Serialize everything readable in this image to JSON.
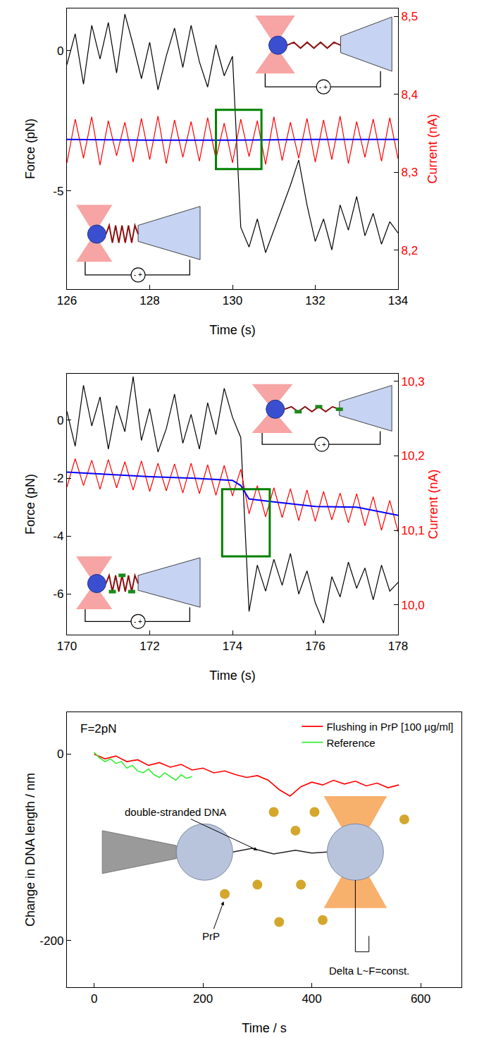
{
  "chart_data": [
    {
      "type": "line",
      "xlabel": "Time (s)",
      "ylabel": "Force (pN)",
      "y2label": "Current (nA)",
      "grid": false,
      "xlim": [
        126,
        134
      ],
      "xticks": [
        126,
        128,
        130,
        132,
        134
      ],
      "ylim": [
        -8.5,
        1.5
      ],
      "yticks": [
        -5,
        0
      ],
      "y2lim": [
        8.15,
        8.51
      ],
      "y2ticks": [
        {
          "value": 8.2,
          "label": "8,2"
        },
        {
          "value": 8.3,
          "label": "8,3"
        },
        {
          "value": 8.4,
          "label": "8,4"
        },
        {
          "value": 8.5,
          "label": "8,5"
        }
      ],
      "series": [
        {
          "color": "#000000",
          "x": [
            126,
            126.2,
            126.4,
            126.6,
            126.8,
            127,
            127.2,
            127.4,
            127.6,
            127.8,
            128,
            128.2,
            128.4,
            128.6,
            128.8,
            129,
            129.2,
            129.4,
            129.6,
            129.8,
            130,
            130.2,
            130.4,
            130.6,
            130.8,
            131,
            131.2,
            131.4,
            131.6,
            131.8,
            132,
            132.2,
            132.4,
            132.6,
            132.8,
            133,
            133.2,
            133.4,
            133.6,
            133.8,
            134
          ],
          "values": [
            -0.5,
            0.6,
            -1.2,
            0.9,
            -0.3,
            1.0,
            -0.8,
            1.3,
            0.2,
            -1.0,
            0.3,
            -1.4,
            -0.2,
            0.8,
            -0.6,
            0.9,
            -0.4,
            -1.3,
            0.2,
            -0.9,
            -0.2,
            -6.3,
            -7.0,
            -6.0,
            -7.2,
            -6.4,
            -5.6,
            -4.8,
            -3.9,
            -5.5,
            -6.8,
            -6.0,
            -7.1,
            -5.5,
            -6.4,
            -5.2,
            -6.6,
            -5.8,
            -6.9,
            -6.1,
            -6.5
          ]
        },
        {
          "color": "#ff0000",
          "axis": "y2",
          "x": [
            126,
            126.2,
            126.4,
            126.6,
            126.8,
            127,
            127.2,
            127.4,
            127.6,
            127.8,
            128,
            128.2,
            128.4,
            128.6,
            128.8,
            129,
            129.2,
            129.4,
            129.6,
            129.8,
            130,
            130.2,
            130.4,
            130.6,
            130.8,
            131,
            131.2,
            131.4,
            131.6,
            131.8,
            132,
            132.2,
            132.4,
            132.6,
            132.8,
            133,
            133.2,
            133.4,
            133.6,
            133.8,
            134
          ],
          "values": [
            8.312,
            8.368,
            8.318,
            8.371,
            8.309,
            8.366,
            8.321,
            8.364,
            8.313,
            8.369,
            8.316,
            8.372,
            8.311,
            8.367,
            8.319,
            8.365,
            8.314,
            8.37,
            8.317,
            8.363,
            8.312,
            8.368,
            8.32,
            8.366,
            8.31,
            8.371,
            8.315,
            8.364,
            8.318,
            8.369,
            8.313,
            8.367,
            8.316,
            8.372,
            8.311,
            8.365,
            8.319,
            8.368,
            8.314,
            8.37,
            8.317
          ]
        },
        {
          "color": "#0000ff",
          "axis": "y2",
          "x": [
            126,
            128,
            130,
            132,
            134
          ],
          "values": [
            8.342,
            8.341,
            8.341,
            8.342,
            8.342
          ]
        }
      ],
      "highlight": {
        "x": [
          129.6,
          130.7
        ],
        "y": [
          8.304,
          8.38
        ],
        "axis": "y2",
        "color": "#008000"
      },
      "inset_label": "- +"
    },
    {
      "type": "line",
      "xlabel": "Time (s)",
      "ylabel": "Force (pN)",
      "y2label": "Current (nA)",
      "grid": false,
      "xlim": [
        170,
        178
      ],
      "xticks": [
        170,
        172,
        174,
        176,
        178
      ],
      "ylim": [
        -7.4,
        1.6
      ],
      "yticks": [
        -6,
        -4,
        -2,
        0
      ],
      "y2lim": [
        9.96,
        10.31
      ],
      "y2ticks": [
        {
          "value": 10.0,
          "label": "10,0"
        },
        {
          "value": 10.1,
          "label": "10,1"
        },
        {
          "value": 10.2,
          "label": "10,2"
        },
        {
          "value": 10.3,
          "label": "10,3"
        }
      ],
      "series": [
        {
          "color": "#000000",
          "x": [
            170,
            170.2,
            170.4,
            170.6,
            170.8,
            171,
            171.2,
            171.4,
            171.6,
            171.8,
            172,
            172.2,
            172.4,
            172.6,
            172.8,
            173,
            173.2,
            173.4,
            173.6,
            173.8,
            174,
            174.2,
            174.4,
            174.6,
            174.8,
            175,
            175.2,
            175.4,
            175.6,
            175.8,
            176,
            176.2,
            176.4,
            176.6,
            176.8,
            177,
            177.2,
            177.4,
            177.6,
            177.8,
            178
          ],
          "values": [
            0.3,
            -0.9,
            1.2,
            -0.2,
            0.8,
            -1.0,
            0.5,
            -0.4,
            1.5,
            -0.7,
            0.4,
            -1.1,
            -0.3,
            0.9,
            -0.8,
            0.2,
            -1.0,
            0.6,
            -0.5,
            1.1,
            0.1,
            -0.6,
            -6.6,
            -5.0,
            -5.9,
            -4.8,
            -5.7,
            -4.6,
            -6.0,
            -5.2,
            -6.3,
            -7.0,
            -5.4,
            -6.1,
            -4.9,
            -5.8,
            -5.1,
            -6.2,
            -5.0,
            -5.9,
            -5.6
          ]
        },
        {
          "color": "#ff0000",
          "axis": "y2",
          "x": [
            170,
            170.2,
            170.4,
            170.6,
            170.8,
            171,
            171.2,
            171.4,
            171.6,
            171.8,
            172,
            172.2,
            172.4,
            172.6,
            172.8,
            173,
            173.2,
            173.4,
            173.6,
            173.8,
            174,
            174.2,
            174.4,
            174.6,
            174.8,
            175,
            175.2,
            175.4,
            175.6,
            175.8,
            176,
            176.2,
            176.4,
            176.6,
            176.8,
            177,
            177.2,
            177.4,
            177.6,
            177.8,
            178
          ],
          "values": [
            10.158,
            10.196,
            10.16,
            10.194,
            10.155,
            10.195,
            10.157,
            10.192,
            10.154,
            10.193,
            10.152,
            10.19,
            10.153,
            10.189,
            10.15,
            10.19,
            10.149,
            10.188,
            10.147,
            10.187,
            10.146,
            10.182,
            10.122,
            10.16,
            10.118,
            10.157,
            10.117,
            10.156,
            10.113,
            10.154,
            10.112,
            10.152,
            10.114,
            10.15,
            10.11,
            10.149,
            10.106,
            10.145,
            10.1,
            10.14,
            10.098
          ]
        },
        {
          "color": "#0000ff",
          "axis": "y2",
          "x": [
            170,
            171,
            172,
            173,
            174,
            174.2,
            174.4,
            175,
            176,
            177,
            178
          ],
          "values": [
            10.178,
            10.175,
            10.172,
            10.17,
            10.167,
            10.16,
            10.142,
            10.138,
            10.132,
            10.131,
            10.12
          ]
        }
      ],
      "highlight": {
        "x": [
          173.75,
          174.9
        ],
        "y": [
          10.065,
          10.155
        ],
        "axis": "y2",
        "color": "#008000"
      },
      "inset_label": "- +"
    },
    {
      "type": "line",
      "xlabel": "Time / s",
      "ylabel": "Change in DNA length / nm",
      "grid": false,
      "xlim": [
        -50,
        675
      ],
      "xticks": [
        0,
        200,
        400,
        600
      ],
      "ylim": [
        -250,
        45
      ],
      "yticks": [
        -200,
        0
      ],
      "legend": "upper right",
      "series": [
        {
          "name": "Flushing in PrP [100 µg/ml]",
          "color": "#ff0000",
          "x": [
            0,
            20,
            40,
            60,
            80,
            100,
            120,
            140,
            160,
            180,
            200,
            220,
            240,
            260,
            280,
            300,
            320,
            340,
            360,
            380,
            400,
            420,
            440,
            460,
            480,
            500,
            520,
            540,
            560
          ],
          "values": [
            0,
            -5,
            -2,
            -8,
            -6,
            -12,
            -9,
            -14,
            -11,
            -17,
            -15,
            -20,
            -18,
            -22,
            -25,
            -23,
            -28,
            -38,
            -45,
            -35,
            -30,
            -33,
            -28,
            -32,
            -29,
            -34,
            -31,
            -36,
            -33
          ]
        },
        {
          "name": "Reference",
          "color": "#33ee33",
          "x": [
            0,
            10,
            20,
            30,
            40,
            50,
            60,
            70,
            80,
            90,
            100,
            110,
            120,
            130,
            140,
            150,
            160,
            170,
            180
          ],
          "values": [
            2,
            -4,
            -8,
            -5,
            -10,
            -8,
            -15,
            -12,
            -18,
            -20,
            -16,
            -22,
            -25,
            -20,
            -24,
            -28,
            -22,
            -26,
            -24
          ]
        }
      ],
      "annotations": [
        "F=2pN",
        "double-stranded DNA",
        "PrP",
        "Delta L~F=const."
      ]
    }
  ]
}
